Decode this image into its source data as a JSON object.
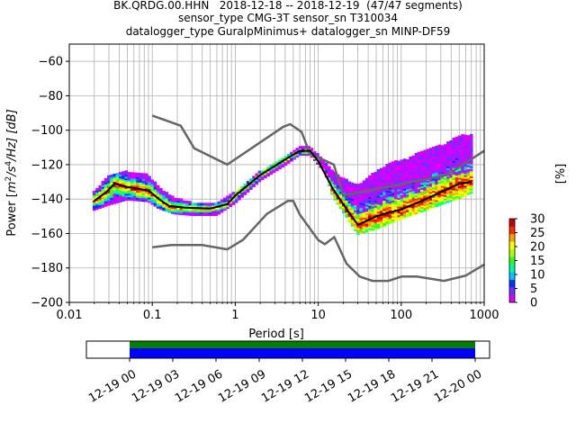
{
  "header": {
    "title_line1": "BK.QRDG.00.HHN   2018-12-18 -- 2018-12-19  (47/47 segments)",
    "title_line2": "sensor_type CMG-3T sensor_sn T310034",
    "title_line3": "datalogger_type GuralpMinimus+ datalogger_sn MINP-DF59"
  },
  "chart_data": [
    {
      "type": "heatmap",
      "xlabel": "Period [s]",
      "ylabel": "Power [m²/s⁴/Hz] [dB]",
      "ylabel_parts": [
        "Power [",
        "m",
        "2",
        "/",
        "s",
        "4",
        "/Hz] [dB]"
      ],
      "xscale": "log",
      "xlim": [
        0.01,
        1000
      ],
      "ylim": [
        -200,
        -50
      ],
      "xticks": [
        0.01,
        0.1,
        1,
        10,
        100,
        1000
      ],
      "xtick_labels": [
        "0.01",
        "0.1",
        "1",
        "10",
        "100",
        "1000"
      ],
      "yticks": [
        -200,
        -180,
        -160,
        -140,
        -120,
        -100,
        -80,
        -60
      ],
      "ytick_labels": [
        "−200",
        "−180",
        "−160",
        "−140",
        "−120",
        "−100",
        "−80",
        "−60"
      ],
      "grid": true,
      "noise_models": {
        "color": "#666666",
        "high": [
          [
            0.1,
            -91.5
          ],
          [
            0.22,
            -97.4
          ],
          [
            0.32,
            -110.5
          ],
          [
            0.8,
            -120
          ],
          [
            3.8,
            -98
          ],
          [
            4.6,
            -96.5
          ],
          [
            6.3,
            -101
          ],
          [
            7.9,
            -113.5
          ],
          [
            15.4,
            -120
          ],
          [
            20,
            -138
          ],
          [
            354.8,
            -126
          ],
          [
            1000,
            -112
          ]
        ],
        "low": [
          [
            0.1,
            -168
          ],
          [
            0.17,
            -166.7
          ],
          [
            0.4,
            -166.7
          ],
          [
            0.8,
            -169.2
          ],
          [
            1.24,
            -163.7
          ],
          [
            2.4,
            -148.6
          ],
          [
            4.3,
            -141.1
          ],
          [
            5,
            -141.1
          ],
          [
            6,
            -149
          ],
          [
            10,
            -163.8
          ],
          [
            12,
            -166.2
          ],
          [
            15.6,
            -162.1
          ],
          [
            21.9,
            -177.5
          ],
          [
            31.6,
            -185
          ],
          [
            45,
            -187.5
          ],
          [
            70,
            -187.5
          ],
          [
            101,
            -185
          ],
          [
            154,
            -185
          ],
          [
            328,
            -187.5
          ],
          [
            600,
            -184.4
          ],
          [
            1000,
            -178
          ]
        ]
      },
      "mode": {
        "color": "#000000",
        "points": [
          [
            0.02,
            -141
          ],
          [
            0.028,
            -136
          ],
          [
            0.035,
            -131
          ],
          [
            0.05,
            -133
          ],
          [
            0.09,
            -135
          ],
          [
            0.12,
            -140
          ],
          [
            0.16,
            -144
          ],
          [
            0.25,
            -145
          ],
          [
            0.5,
            -145.5
          ],
          [
            0.8,
            -143
          ],
          [
            1,
            -138
          ],
          [
            2,
            -126
          ],
          [
            4,
            -117
          ],
          [
            6,
            -112
          ],
          [
            8,
            -112
          ],
          [
            10,
            -118
          ],
          [
            15,
            -134
          ],
          [
            20,
            -143
          ],
          [
            30,
            -155
          ],
          [
            50,
            -150
          ],
          [
            100,
            -146
          ],
          [
            200,
            -140
          ],
          [
            500,
            -131
          ],
          [
            700,
            -130
          ]
        ]
      },
      "upper_band": [
        [
          0.02,
          -136
        ],
        [
          0.03,
          -126
        ],
        [
          0.05,
          -124
        ],
        [
          0.09,
          -126
        ],
        [
          0.12,
          -133
        ],
        [
          0.18,
          -139
        ],
        [
          0.3,
          -142
        ],
        [
          0.6,
          -143
        ],
        [
          1,
          -136
        ],
        [
          2,
          -124
        ],
        [
          4,
          -116
        ],
        [
          6,
          -110
        ],
        [
          8,
          -110
        ],
        [
          12,
          -118
        ],
        [
          15,
          -124
        ],
        [
          20,
          -128
        ],
        [
          30,
          -132
        ],
        [
          50,
          -124
        ],
        [
          80,
          -118
        ],
        [
          120,
          -117
        ],
        [
          160,
          -113
        ],
        [
          250,
          -110
        ],
        [
          350,
          -108
        ],
        [
          500,
          -103
        ],
        [
          700,
          -103
        ]
      ],
      "lower_band": [
        [
          0.02,
          -146
        ],
        [
          0.03,
          -143
        ],
        [
          0.05,
          -140
        ],
        [
          0.09,
          -141
        ],
        [
          0.12,
          -145
        ],
        [
          0.18,
          -148
        ],
        [
          0.3,
          -149
        ],
        [
          0.6,
          -149
        ],
        [
          1,
          -142
        ],
        [
          2,
          -129
        ],
        [
          4,
          -120
        ],
        [
          6,
          -114
        ],
        [
          8,
          -114
        ],
        [
          12,
          -124
        ],
        [
          15,
          -138
        ],
        [
          20,
          -147
        ],
        [
          30,
          -160
        ],
        [
          50,
          -157
        ],
        [
          100,
          -151
        ],
        [
          200,
          -146
        ],
        [
          500,
          -139
        ],
        [
          700,
          -136
        ]
      ],
      "colorbar": {
        "label": "[%]",
        "min": 0,
        "max": 30,
        "ticks": [
          0,
          5,
          10,
          15,
          20,
          25,
          30
        ],
        "tick_labels": [
          "0",
          "5",
          "10",
          "15",
          "20",
          "25",
          "30"
        ],
        "colors": [
          "#ffffff",
          "#d900ff",
          "#7a29ff",
          "#0033ff",
          "#00c8ff",
          "#00ffa0",
          "#2dff2d",
          "#b4ff00",
          "#ffff00",
          "#ffa000",
          "#ff2a00",
          "#c80000"
        ]
      }
    },
    {
      "type": "bar",
      "description_role": "data coverage",
      "x_ticks": [
        "12-19 00",
        "12-19 03",
        "12-19 06",
        "12-19 09",
        "12-19 12",
        "12-19 15",
        "12-19 18",
        "12-19 21",
        "12-20 00"
      ],
      "xlim_hours": [
        -3,
        25
      ],
      "coverage_start_hour": 0,
      "coverage_end_hour": 24,
      "colors": {
        "top": "#008000",
        "bottom": "#0000ff"
      }
    }
  ]
}
